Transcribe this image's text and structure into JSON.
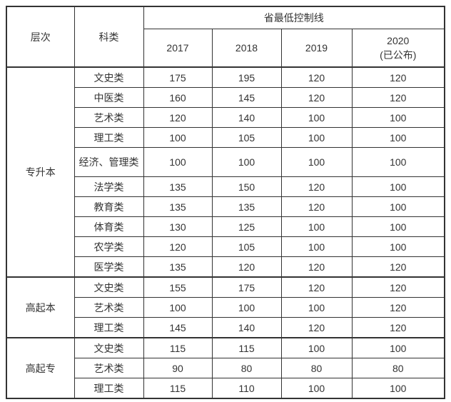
{
  "table": {
    "header": {
      "level": "层次",
      "category": "科类",
      "group_title": "省最低控制线",
      "years": [
        {
          "label": "2017",
          "sub": ""
        },
        {
          "label": "2018",
          "sub": ""
        },
        {
          "label": "2019",
          "sub": ""
        },
        {
          "label": "2020",
          "sub": "(已公布)"
        }
      ]
    },
    "groups": [
      {
        "level": "专升本",
        "rows": [
          {
            "category": "文史类",
            "values": [
              "175",
              "195",
              "120",
              "120"
            ]
          },
          {
            "category": "中医类",
            "values": [
              "160",
              "145",
              "120",
              "120"
            ]
          },
          {
            "category": "艺术类",
            "values": [
              "120",
              "140",
              "100",
              "100"
            ]
          },
          {
            "category": "理工类",
            "values": [
              "100",
              "105",
              "100",
              "100"
            ]
          },
          {
            "category": "经济、管理类",
            "values": [
              "100",
              "100",
              "100",
              "100"
            ],
            "tall": true
          },
          {
            "category": "法学类",
            "values": [
              "135",
              "150",
              "120",
              "100"
            ]
          },
          {
            "category": "教育类",
            "values": [
              "135",
              "135",
              "120",
              "100"
            ]
          },
          {
            "category": "体育类",
            "values": [
              "130",
              "125",
              "100",
              "100"
            ]
          },
          {
            "category": "农学类",
            "values": [
              "120",
              "105",
              "100",
              "100"
            ]
          },
          {
            "category": "医学类",
            "values": [
              "135",
              "120",
              "120",
              "120"
            ]
          }
        ]
      },
      {
        "level": "高起本",
        "rows": [
          {
            "category": "文史类",
            "values": [
              "155",
              "175",
              "120",
              "120"
            ]
          },
          {
            "category": "艺术类",
            "values": [
              "100",
              "100",
              "100",
              "120"
            ]
          },
          {
            "category": "理工类",
            "values": [
              "145",
              "140",
              "120",
              "120"
            ]
          }
        ]
      },
      {
        "level": "高起专",
        "rows": [
          {
            "category": "文史类",
            "values": [
              "115",
              "115",
              "100",
              "100"
            ]
          },
          {
            "category": "艺术类",
            "values": [
              "90",
              "80",
              "80",
              "80"
            ]
          },
          {
            "category": "理工类",
            "values": [
              "115",
              "110",
              "100",
              "100"
            ]
          }
        ]
      }
    ]
  },
  "colors": {
    "border": "#333333",
    "text": "#333333",
    "background": "#ffffff"
  }
}
